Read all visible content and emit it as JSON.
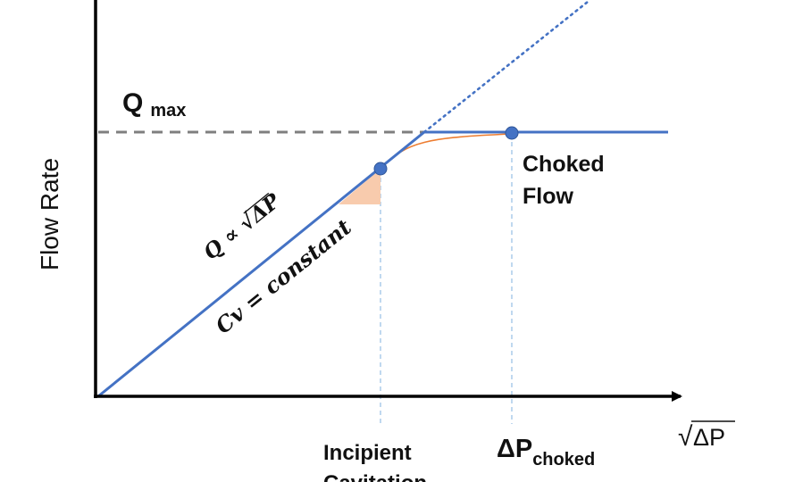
{
  "labels": {
    "y_axis": "Flow Rate",
    "x_axis_radical": "√",
    "x_axis_delta_p": "ΔP",
    "q_max_main": "Q",
    "q_max_sub": "max",
    "choked_flow_line1": "Choked",
    "choked_flow_line2": "Flow",
    "incipient_line1": "Incipient",
    "incipient_line2": "Cavitation",
    "dp_choked_main": "ΔP",
    "dp_choked_sub": "choked",
    "eq_q_prefix": "Q ∝ ",
    "eq_q_radical": "√",
    "eq_q_delta_p": "ΔP",
    "eq_cv": "Cv = constant"
  },
  "colors": {
    "line_blue": "#4472c4",
    "dashed_gray": "#7f7f7f",
    "guide_blue": "#9dc3e6",
    "orange_curve": "#ed7d31",
    "orange_fill": "#f8cbad",
    "axis": "#000000"
  }
}
